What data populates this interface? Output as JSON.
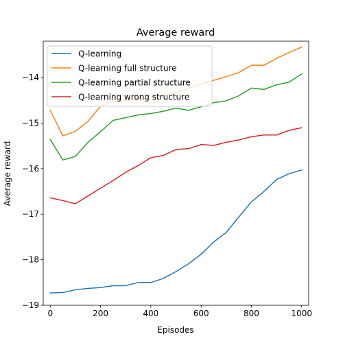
{
  "chart_data": {
    "type": "line",
    "title": "Average reward",
    "xlabel": "Episodes",
    "ylabel": "Average reward",
    "xlim": [
      -28,
      1028
    ],
    "ylim": [
      -19,
      -13.2
    ],
    "grid": false,
    "legend_position": "top-left",
    "x_ticks": [
      0,
      200,
      400,
      600,
      800,
      1000
    ],
    "y_ticks": [
      -19,
      -18,
      -17,
      -16,
      -15,
      -14
    ],
    "x_tick_labels": [
      "0",
      "200",
      "400",
      "600",
      "800",
      "1000"
    ],
    "y_tick_labels": [
      "−19",
      "−18",
      "−17",
      "−16",
      "−15",
      "−14"
    ],
    "x": [
      0,
      50,
      100,
      150,
      200,
      250,
      300,
      350,
      400,
      450,
      500,
      550,
      600,
      650,
      700,
      750,
      800,
      850,
      900,
      950,
      1000
    ],
    "series": [
      {
        "name": "Q-learning",
        "color": "#1f77b4",
        "values": [
          -18.73,
          -18.72,
          -18.66,
          -18.63,
          -18.61,
          -18.57,
          -18.57,
          -18.5,
          -18.5,
          -18.41,
          -18.26,
          -18.09,
          -17.88,
          -17.61,
          -17.4,
          -17.06,
          -16.73,
          -16.5,
          -16.24,
          -16.11,
          -16.03
        ]
      },
      {
        "name": "Q-learning full structure",
        "color": "#ff7f0e",
        "values": [
          -14.72,
          -15.28,
          -15.18,
          -14.96,
          -14.63,
          -14.51,
          -14.51,
          -14.46,
          -14.45,
          -14.4,
          -14.34,
          -14.23,
          -14.15,
          -14.06,
          -13.98,
          -13.89,
          -13.73,
          -13.73,
          -13.58,
          -13.45,
          -13.33
        ]
      },
      {
        "name": "Q-learning partial structure",
        "color": "#2ca02c",
        "values": [
          -15.36,
          -15.81,
          -15.73,
          -15.42,
          -15.19,
          -14.94,
          -14.88,
          -14.82,
          -14.79,
          -14.74,
          -14.67,
          -14.72,
          -14.64,
          -14.55,
          -14.51,
          -14.4,
          -14.23,
          -14.26,
          -14.16,
          -14.1,
          -13.92
        ]
      },
      {
        "name": "Q-learning wrong structure",
        "color": "#d62728",
        "values": [
          -16.64,
          -16.7,
          -16.77,
          -16.6,
          -16.43,
          -16.26,
          -16.08,
          -15.93,
          -15.76,
          -15.71,
          -15.58,
          -15.56,
          -15.47,
          -15.49,
          -15.42,
          -15.37,
          -15.3,
          -15.26,
          -15.26,
          -15.16,
          -15.1
        ]
      }
    ]
  }
}
